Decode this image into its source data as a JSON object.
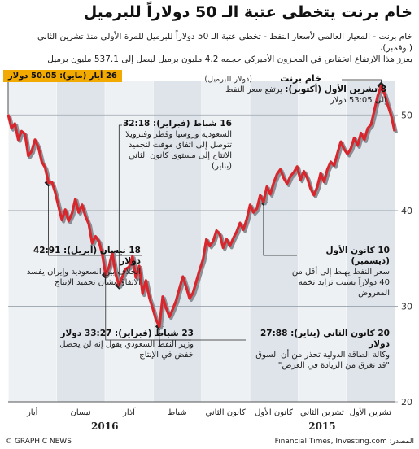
{
  "header": {
    "title": "خام برنت يتخطى عتبة الـ 50 دولاراً للبرميل",
    "subtitle_1": "خام برنت - المعيار العالمي لأسعار النفط - تخطى عتبة الـ 50 دولاراً للبرميل للمرة الأولى منذ تشرين الثاني (نوفمبر)،",
    "subtitle_2": "يعزز هذا الارتفاع انخفاض في المخزون الأميركي حجمه 4.2 مليون برميل ليصل إلى 537.1 مليون برميل"
  },
  "footer": {
    "credit": "© GRAPHIC NEWS",
    "source": "المصدر: Financial Times, Investing.com"
  },
  "peak_label": "26 أيار (مايو): 50.05 دولار",
  "annotations": [
    {
      "title": "8 تشرين الأول (أكتوبر):",
      "body": "يرتفع سعر النفط إلى 53:05 دولار"
    },
    {
      "title": "16 شباط (فبراير): 32:18",
      "body": "السعودية وروسيا وقطر وفنزويلا تتوصل إلى اتفاق موقت لتجميد الانتاج إلى مستوى كانون الثاني (يناير)"
    },
    {
      "title": "18 نيسان (أبريل): 42:91 دولار",
      "body": "الخلاف بين السعودية وإيران يفسد الاتفاق بشأن تجميد الإنتاج"
    },
    {
      "title": "10 كانون الأول (ديسمبر)",
      "body": "سعر النفط يهبط إلى أقل من 40 دولاراً بسبب تزايد تخمة المعروض"
    },
    {
      "title": "23 شباط (فبراير): 33:27 دولار",
      "body": "وزير النفط السعودي يقول إنه لن يحصل خفض في الإنتاج"
    },
    {
      "title": "20 كانون الثاني (يناير): 27:88 دولار",
      "body": "وكالة الطاقة الدولية تحذر من أن السوق \"قد تغرق من الزيادة في العرض\""
    }
  ],
  "chart_data": {
    "type": "line",
    "title": "خام برنت",
    "ylabel": "(دولار للبرميل)",
    "xlabel": "",
    "ylim": [
      20,
      53
    ],
    "yticks": [
      20,
      30,
      40,
      50
    ],
    "x_note": "sessions counted from right (Oct 2015) to left (May 2016)",
    "months": [
      "تشرين الأول",
      "تشرين الثاني",
      "كانون الأول",
      "كانون الثاني",
      "شباط",
      "آذار",
      "نيسان",
      "أيار"
    ],
    "years": [
      "2015",
      "2016"
    ],
    "series": [
      {
        "name": "خام برنت",
        "values": [
          48.3,
          49.9,
          51.0,
          52.2,
          53.05,
          52.0,
          50.5,
          49.0,
          48.6,
          47.4,
          48.1,
          46.8,
          47.6,
          46.5,
          45.9,
          46.4,
          47.2,
          46.0,
          44.7,
          45.1,
          44.3,
          43.0,
          43.9,
          42.5,
          41.6,
          42.3,
          43.4,
          44.1,
          43.2,
          44.6,
          44.0,
          43.6,
          42.8,
          43.4,
          44.3,
          43.8,
          42.9,
          41.7,
          42.5,
          40.9,
          41.6,
          40.2,
          39.8,
          40.6,
          39.1,
          38.0,
          38.7,
          37.8,
          37.1,
          36.3,
          37.0,
          36.1,
          37.5,
          37.9,
          36.8,
          36.3,
          37.0,
          34.9,
          33.8,
          32.6,
          31.4,
          30.8,
          32.0,
          33.1,
          31.9,
          30.6,
          29.7,
          28.9,
          29.8,
          31.0,
          27.88,
          28.6,
          29.8,
          30.9,
          32.7,
          31.3,
          34.2,
          33.0,
          35.2,
          34.1,
          33.9,
          33.1,
          32.18,
          33.3,
          35.6,
          34.1,
          33.27,
          35.4,
          36.8,
          37.3,
          36.6,
          38.6,
          39.4,
          40.6,
          39.8,
          41.2,
          39.7,
          38.9,
          40.1,
          39.0,
          40.4,
          41.9,
          43.0,
          42.91,
          44.5,
          45.1,
          46.6,
          47.4,
          46.2,
          45.7,
          48.0,
          48.3,
          47.4,
          49.1,
          48.6,
          50.05
        ]
      }
    ]
  }
}
